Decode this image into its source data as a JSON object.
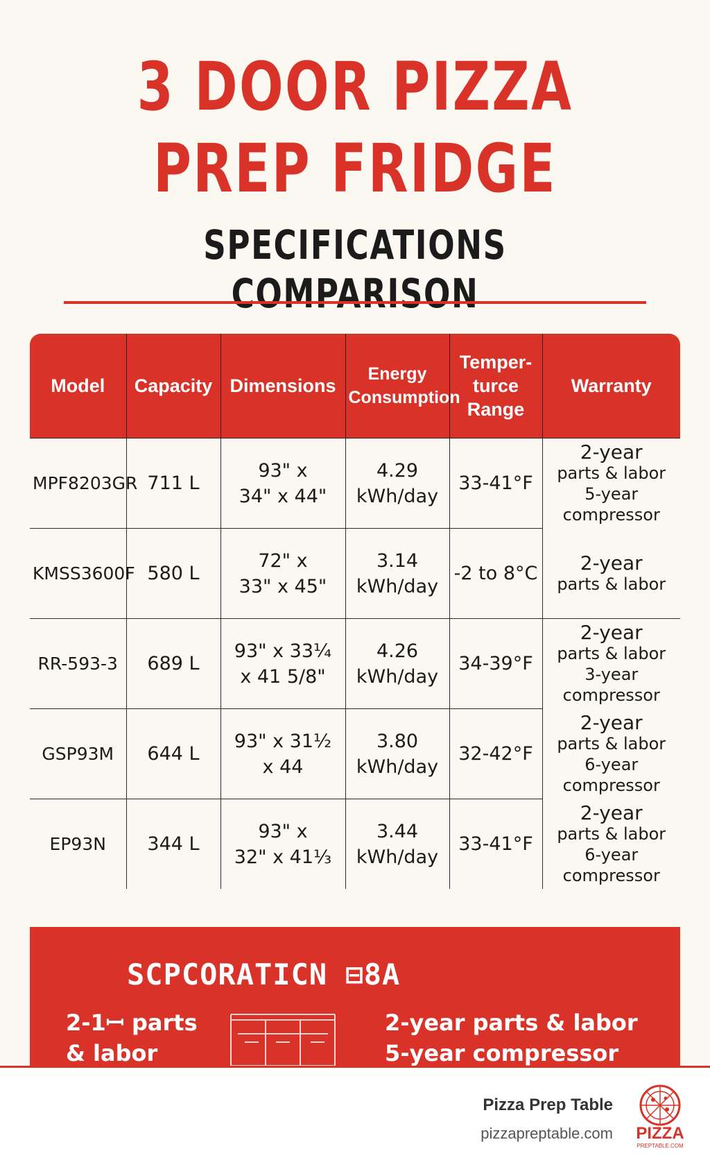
{
  "header": {
    "title_line1": "3 DOOR PIZZA",
    "title_line2": "PREP FRIDGE",
    "subtitle": "SPECIFICATIONS COMPARISON"
  },
  "table": {
    "columns": {
      "model": "Model",
      "capacity": "Capacity",
      "dimensions": "Dimensions",
      "energy_1": "Energy",
      "energy_2": "Consumption",
      "temp_1": "Temper-",
      "temp_2": "turce",
      "temp_3": "Range",
      "warranty": "Warranty"
    },
    "rows": [
      {
        "model": "MPF8203GR",
        "capacity": "711 L",
        "dim_1": "93\" x",
        "dim_2": "34\" x 44\"",
        "energy_1": "4.29",
        "energy_2": "kWh/day",
        "temp": "33-41°F"
      },
      {
        "model": "KMSS3600F",
        "capacity": "580 L",
        "dim_1": "72\" x",
        "dim_2": "33\" x 45\"",
        "energy_1": "3.14",
        "energy_2": "kWh/day",
        "temp": "-2 to 8°C"
      },
      {
        "model": "RR-593-3",
        "capacity": "689 L",
        "dim_1": "93\" x 33¼",
        "dim_2": "x 41 5/8\"",
        "energy_1": "4.26",
        "energy_2": "kWh/day",
        "temp": "34-39°F"
      },
      {
        "model": "GSP93M",
        "capacity": "644 L",
        "dim_1": "93\" x 31½",
        "dim_2": "x 44",
        "energy_1": "3.80",
        "energy_2": "kWh/day",
        "temp": "32-42°F"
      },
      {
        "model": "EP93N",
        "capacity": "344 L",
        "dim_1": "93\" x",
        "dim_2": "32\" x 41⅓",
        "energy_1": "3.44",
        "energy_2": "kWh/day",
        "temp": "33-41°F"
      }
    ],
    "warranty_groups": [
      {
        "head": "2-year",
        "l1": "parts & labor",
        "l2": "5-year",
        "l3": "compressor"
      },
      {
        "head": "2-year",
        "l1": "parts & labor"
      },
      {
        "head": "2-year",
        "l1": "parts & labor",
        "l2": "3-year",
        "l3": "compressor"
      },
      {
        "head": "2-year",
        "l1": "parts & labor",
        "l2": "6-year",
        "l3": "compressor"
      },
      {
        "head": "2-year",
        "l1": "parts & labor",
        "l2": "6-year",
        "l3": "compressor"
      }
    ]
  },
  "panel": {
    "title": "SCPCORATICN ⊟8A",
    "left_1": "2-1ꟷ parts",
    "left_2": "& labor",
    "right_1": "2-year parts & labor",
    "right_2": "5-year compressor"
  },
  "footer": {
    "brand": "Pizza Prep Table",
    "url": "pizzapreptable.com",
    "logo_text": "PIZZA",
    "logo_sub": "PREPTABLE.COM"
  },
  "colors": {
    "accent": "#d93228",
    "background": "#fbf8f1",
    "text": "#1b1b1b"
  }
}
